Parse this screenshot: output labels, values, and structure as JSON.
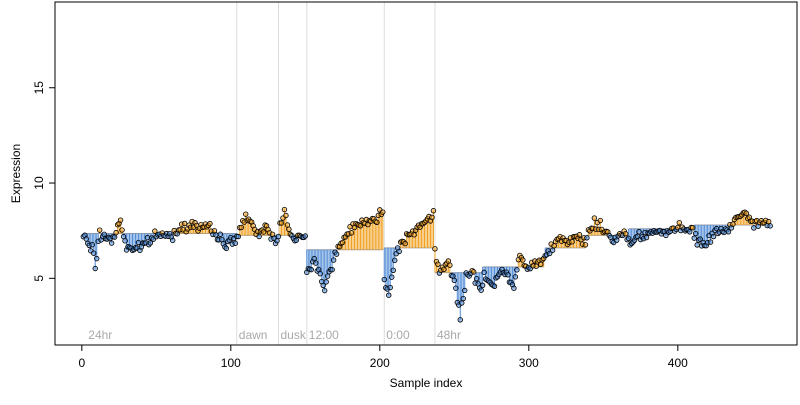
{
  "chart_data": {
    "type": "scatter",
    "xlabel": "Sample index",
    "ylabel": "Expression",
    "xlim": [
      -18,
      480
    ],
    "ylim": [
      1.5,
      19.5
    ],
    "x_ticks": [
      0,
      100,
      200,
      300,
      400
    ],
    "y_ticks": [
      5,
      10,
      15
    ],
    "grid": false,
    "colors": {
      "above_segment": "#f0a020",
      "below_segment": "#4f8bd6",
      "baseline": "#a0a0a0",
      "annotation_line": "#dcdcdc",
      "point_stroke": "#000000"
    },
    "annotations": [
      {
        "label": "24hr",
        "x": 3,
        "line": false
      },
      {
        "label": "dawn",
        "x": 104,
        "line": true
      },
      {
        "label": "dusk",
        "x": 132,
        "line": true
      },
      {
        "label": "12:00",
        "x": 151,
        "line": true
      },
      {
        "label": "0:00",
        "x": 203,
        "line": true
      },
      {
        "label": "48hr",
        "x": 237,
        "line": true
      }
    ],
    "segments": [
      {
        "x0": 1,
        "x1": 104,
        "mean": 7.35
      },
      {
        "x0": 105,
        "x1": 150,
        "mean": 7.25
      },
      {
        "x0": 151,
        "x1": 202,
        "mean": 6.5
      },
      {
        "x0": 203,
        "x1": 236,
        "mean": 6.6
      },
      {
        "x0": 237,
        "x1": 268,
        "mean": 5.3
      },
      {
        "x0": 269,
        "x1": 310,
        "mean": 5.6
      },
      {
        "x0": 311,
        "x1": 338,
        "mean": 6.6
      },
      {
        "x0": 339,
        "x1": 366,
        "mean": 7.25
      },
      {
        "x0": 367,
        "x1": 410,
        "mean": 7.6
      },
      {
        "x0": 411,
        "x1": 462,
        "mean": 7.8
      }
    ],
    "anchors": [
      [
        1,
        7.2
      ],
      [
        8,
        6.4
      ],
      [
        9,
        5.6
      ],
      [
        12,
        7.3
      ],
      [
        20,
        7.0
      ],
      [
        26,
        8.0
      ],
      [
        30,
        6.6
      ],
      [
        40,
        6.6
      ],
      [
        50,
        7.3
      ],
      [
        60,
        7.2
      ],
      [
        68,
        7.8
      ],
      [
        75,
        7.8
      ],
      [
        80,
        7.7
      ],
      [
        88,
        7.5
      ],
      [
        96,
        6.8
      ],
      [
        104,
        7.0
      ],
      [
        105,
        7.4
      ],
      [
        110,
        8.3
      ],
      [
        118,
        7.2
      ],
      [
        124,
        7.8
      ],
      [
        130,
        6.8
      ],
      [
        136,
        8.6
      ],
      [
        142,
        7.0
      ],
      [
        150,
        7.2
      ],
      [
        151,
        5.2
      ],
      [
        156,
        5.9
      ],
      [
        160,
        5.3
      ],
      [
        163,
        4.5
      ],
      [
        170,
        6.2
      ],
      [
        178,
        7.4
      ],
      [
        184,
        7.9
      ],
      [
        196,
        8.0
      ],
      [
        202,
        8.5
      ],
      [
        203,
        5.0
      ],
      [
        206,
        4.3
      ],
      [
        212,
        6.6
      ],
      [
        220,
        7.4
      ],
      [
        228,
        7.8
      ],
      [
        236,
        8.3
      ],
      [
        237,
        6.3
      ],
      [
        240,
        5.2
      ],
      [
        246,
        6.0
      ],
      [
        251,
        4.5
      ],
      [
        254,
        3.0
      ],
      [
        258,
        5.0
      ],
      [
        262,
        5.3
      ],
      [
        268,
        4.4
      ],
      [
        270,
        5.3
      ],
      [
        276,
        4.5
      ],
      [
        282,
        5.5
      ],
      [
        290,
        4.5
      ],
      [
        294,
        6.3
      ],
      [
        298,
        5.5
      ],
      [
        310,
        6.0
      ],
      [
        312,
        6.5
      ],
      [
        320,
        7.0
      ],
      [
        326,
        6.8
      ],
      [
        332,
        7.2
      ],
      [
        338,
        6.9
      ],
      [
        340,
        7.5
      ],
      [
        344,
        7.9
      ],
      [
        350,
        7.6
      ],
      [
        356,
        7.0
      ],
      [
        362,
        7.4
      ],
      [
        366,
        7.2
      ],
      [
        368,
        6.8
      ],
      [
        374,
        7.3
      ],
      [
        382,
        7.4
      ],
      [
        392,
        7.4
      ],
      [
        400,
        7.6
      ],
      [
        410,
        7.5
      ],
      [
        412,
        7.0
      ],
      [
        418,
        6.8
      ],
      [
        426,
        7.4
      ],
      [
        434,
        7.6
      ],
      [
        440,
        8.2
      ],
      [
        446,
        8.2
      ],
      [
        454,
        7.8
      ],
      [
        462,
        8.0
      ]
    ],
    "n_points": 462,
    "jitter": 0.38,
    "seed": 7
  }
}
